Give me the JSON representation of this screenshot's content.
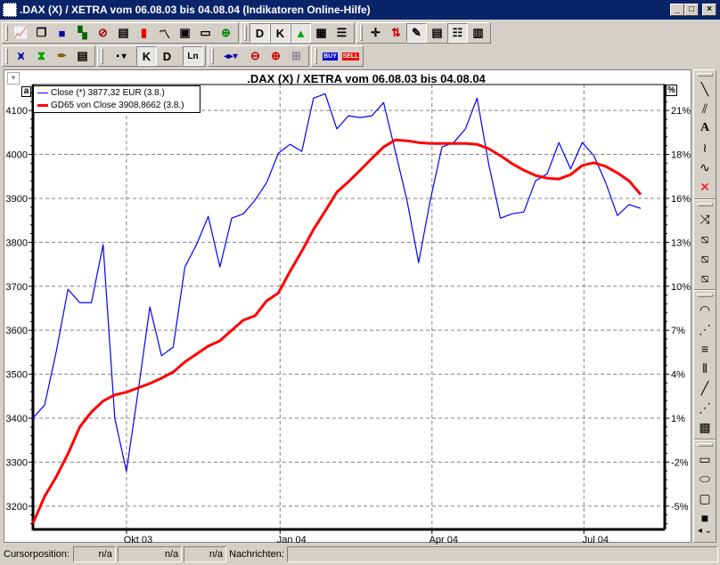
{
  "window": {
    "title": ".DAX (X) / XETRA vom 06.08.03 bis 04.08.04 (Indikatoren Online-Hilfe)",
    "minimize": "_",
    "maximize": "□",
    "close": "×"
  },
  "toolbar1": [
    {
      "icon": "new-chart-icon",
      "glyph": "📈"
    },
    {
      "icon": "windows-icon",
      "glyph": "❐"
    },
    {
      "icon": "objects-icon",
      "glyph": "■"
    },
    {
      "icon": "tree-icon",
      "glyph": "▚"
    },
    {
      "icon": "no-indicator-icon",
      "glyph": "⊘"
    },
    {
      "icon": "table-icon",
      "glyph": "▤"
    },
    {
      "icon": "bar-chart-icon",
      "glyph": "▮"
    },
    {
      "icon": "line-chart-icon",
      "glyph": "〽"
    },
    {
      "icon": "certificate-icon",
      "glyph": "▣"
    },
    {
      "icon": "cards-icon",
      "glyph": "▭"
    },
    {
      "icon": "add-chart-icon",
      "glyph": "⊕"
    },
    {
      "icon": "daily-icon",
      "glyph": "D"
    },
    {
      "icon": "candle-icon",
      "glyph": "K"
    },
    {
      "icon": "triangle-icon",
      "glyph": "▲"
    },
    {
      "icon": "grid-icon",
      "glyph": "▦"
    },
    {
      "icon": "lines-icon",
      "glyph": "☰"
    },
    {
      "icon": "crosshair-icon",
      "glyph": "✛"
    },
    {
      "icon": "arrows-icon",
      "glyph": "⇅"
    },
    {
      "icon": "pencil-icon",
      "glyph": "✎"
    },
    {
      "icon": "text-doc-icon",
      "glyph": "▤"
    },
    {
      "icon": "legend-list-icon",
      "glyph": "☷"
    },
    {
      "icon": "panel-icon",
      "glyph": "▥"
    }
  ],
  "toolbar2": {
    "d_label": "D",
    "k_label": "K",
    "ln_label": "Ln",
    "buy_label": "BUY",
    "sell_label": "SELL"
  },
  "chart": {
    "title": ".DAX (X) / XETRA vom 06.08.03 bis 04.08.04",
    "left_button": "a",
    "right_button": "%"
  },
  "chart_data": {
    "type": "line",
    "title": ".DAX (X) / XETRA vom 06.08.03 bis 04.08.04",
    "ylim": [
      3147,
      4159
    ],
    "y_ticks": [
      3200,
      3300,
      3400,
      3500,
      3600,
      3700,
      3800,
      3900,
      4000,
      4100
    ],
    "y2_ticks": [
      "-5%",
      "-2%",
      "1%",
      "4%",
      "7%",
      "10%",
      "13%",
      "16%",
      "18%",
      "21%"
    ],
    "x_ticks": [
      {
        "date": "2003-10-01",
        "label": "Okt 03"
      },
      {
        "date": "2004-01-01",
        "label": "Jan 04"
      },
      {
        "date": "2004-04-01",
        "label": "Apr 04"
      },
      {
        "date": "2004-07-01",
        "label": "Jul 04"
      }
    ],
    "xlim": [
      "2003-08-06",
      "2004-08-04"
    ],
    "grid": true,
    "legend": "top-left",
    "dates": [
      "2003-08-06",
      "2003-08-13",
      "2003-08-20",
      "2003-08-27",
      "2003-09-03",
      "2003-09-10",
      "2003-09-17",
      "2003-09-24",
      "2003-10-01",
      "2003-10-08",
      "2003-10-15",
      "2003-10-22",
      "2003-10-29",
      "2003-11-05",
      "2003-11-12",
      "2003-11-19",
      "2003-11-26",
      "2003-12-03",
      "2003-12-10",
      "2003-12-17",
      "2003-12-24",
      "2003-12-31",
      "2004-01-07",
      "2004-01-14",
      "2004-01-21",
      "2004-01-28",
      "2004-02-04",
      "2004-02-11",
      "2004-02-18",
      "2004-02-25",
      "2004-03-03",
      "2004-03-10",
      "2004-03-17",
      "2004-03-24",
      "2004-03-31",
      "2004-04-07",
      "2004-04-14",
      "2004-04-21",
      "2004-04-28",
      "2004-05-05",
      "2004-05-12",
      "2004-05-19",
      "2004-05-26",
      "2004-06-02",
      "2004-06-09",
      "2004-06-16",
      "2004-06-23",
      "2004-06-30",
      "2004-07-07",
      "2004-07-14",
      "2004-07-21",
      "2004-07-28",
      "2004-08-04"
    ],
    "series": [
      {
        "name": "Close (*) 3877,32 EUR (3.8.)",
        "color": "#0000ff",
        "values": [
          3400,
          3430,
          3552,
          3693,
          3663,
          3663,
          3795,
          3400,
          3279,
          3461,
          3653,
          3542,
          3562,
          3744,
          3795,
          3859,
          3744,
          3855,
          3865,
          3896,
          3936,
          4003,
          4023,
          4007,
          4128,
          4138,
          4058,
          4088,
          4084,
          4088,
          4118,
          4007,
          3896,
          3754,
          3896,
          4017,
          4027,
          4058,
          4128,
          3977,
          3855,
          3865,
          3869,
          3940,
          3956,
          4027,
          3967,
          4027,
          3997,
          3936,
          3861,
          3886,
          3877.32
        ]
      },
      {
        "name": "GD65 von Close 3908,8662 (3.8.)",
        "color": "#ff0000",
        "values": [
          3161,
          3222,
          3267,
          3319,
          3380,
          3414,
          3439,
          3453,
          3459,
          3469,
          3479,
          3491,
          3505,
          3528,
          3546,
          3564,
          3576,
          3600,
          3623,
          3633,
          3667,
          3685,
          3734,
          3780,
          3829,
          3871,
          3914,
          3938,
          3964,
          3991,
          4017,
          4033,
          4031,
          4027,
          4025,
          4025,
          4025,
          4025,
          4023,
          4013,
          3997,
          3979,
          3964,
          3952,
          3946,
          3944,
          3954,
          3975,
          3981,
          3973,
          3958,
          3940,
          3908.87
        ]
      }
    ]
  },
  "right_toolbar": [
    {
      "icon": "line-tool-icon",
      "glyph": "╲"
    },
    {
      "icon": "parallel-lines-icon",
      "glyph": "⫽"
    },
    {
      "icon": "text-tool-icon",
      "glyph": "A"
    },
    {
      "icon": "freehand-icon",
      "glyph": "≀"
    },
    {
      "icon": "sine-icon",
      "glyph": "∿"
    },
    {
      "icon": "delete-icon",
      "glyph": "✕"
    },
    {
      "icon": "fibonacci-icon",
      "glyph": "⤨"
    },
    {
      "icon": "channel-g-icon",
      "glyph": "⧅"
    },
    {
      "icon": "channel-e-icon",
      "glyph": "⧅"
    },
    {
      "icon": "channel-icon",
      "glyph": "⧅"
    },
    {
      "icon": "arcs-icon",
      "glyph": "◠"
    },
    {
      "icon": "fan-icon",
      "glyph": "⋰"
    },
    {
      "icon": "horizontal-lines-icon",
      "glyph": "≡"
    },
    {
      "icon": "vertical-lines-icon",
      "glyph": "⦀"
    },
    {
      "icon": "diagonal-line-icon",
      "glyph": "╱"
    },
    {
      "icon": "gann-fan-icon",
      "glyph": "⋰"
    },
    {
      "icon": "crosshatch-icon",
      "glyph": "▩"
    },
    {
      "icon": "rectangle-icon",
      "glyph": "▭"
    },
    {
      "icon": "ellipse-icon",
      "glyph": "⬭"
    },
    {
      "icon": "rounded-rect-icon",
      "glyph": "▢"
    },
    {
      "icon": "filled-rect-icon",
      "glyph": "■"
    }
  ],
  "status": {
    "cursor_label": "Cursorposition:",
    "field1": "n/a",
    "field2": "n/a",
    "field3": "n/a",
    "messages_label": "Nachrichten:",
    "messages": ""
  }
}
